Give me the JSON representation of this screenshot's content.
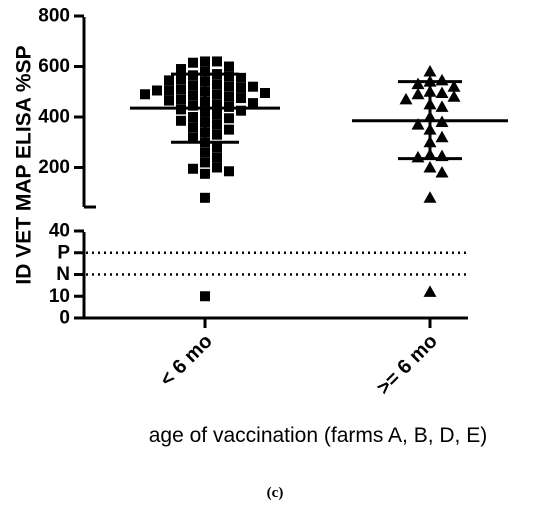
{
  "chart_data": {
    "type": "scatter",
    "ylabel": "ID VET MAP ELISA %SP",
    "xlabel": "age of vaccination (farms A, B, D, E)",
    "caption": "(c)",
    "categories": [
      "< 6 mo",
      ">= 6 mo"
    ],
    "upper_axis": {
      "range": [
        50,
        800
      ],
      "ticks": [
        200,
        400,
        600,
        800
      ],
      "tick_labels": [
        "200",
        "400",
        "600",
        "800"
      ]
    },
    "lower_axis": {
      "range": [
        0,
        40
      ],
      "ticks": [
        0,
        10,
        40
      ],
      "tick_labels": [
        "0",
        "10",
        "40"
      ]
    },
    "reference_lines": [
      {
        "label": "P",
        "value": 30,
        "style": "dotted"
      },
      {
        "label": "N",
        "value": 20,
        "style": "dotted"
      }
    ],
    "series": [
      {
        "name": "< 6 mo",
        "marker": "square",
        "values": [
          620,
          620,
          615,
          600,
          590,
          580,
          570,
          565,
          560,
          555,
          550,
          545,
          540,
          530,
          525,
          520,
          520,
          515,
          510,
          505,
          505,
          500,
          495,
          490,
          490,
          485,
          480,
          475,
          470,
          465,
          460,
          455,
          450,
          445,
          440,
          430,
          425,
          420,
          410,
          400,
          395,
          385,
          380,
          370,
          360,
          350,
          340,
          330,
          320,
          300,
          280,
          260,
          240,
          220,
          200,
          195,
          185,
          175,
          80,
          10
        ],
        "mean": 435,
        "sd_upper": 570,
        "sd_lower": 300
      },
      {
        "name": ">= 6 mo",
        "marker": "triangle",
        "values": [
          580,
          545,
          540,
          530,
          520,
          500,
          495,
          490,
          480,
          470,
          450,
          440,
          400,
          380,
          370,
          350,
          320,
          300,
          250,
          245,
          240,
          200,
          180,
          80,
          12
        ],
        "mean": 385,
        "sd_upper": 540,
        "sd_lower": 235
      }
    ]
  }
}
